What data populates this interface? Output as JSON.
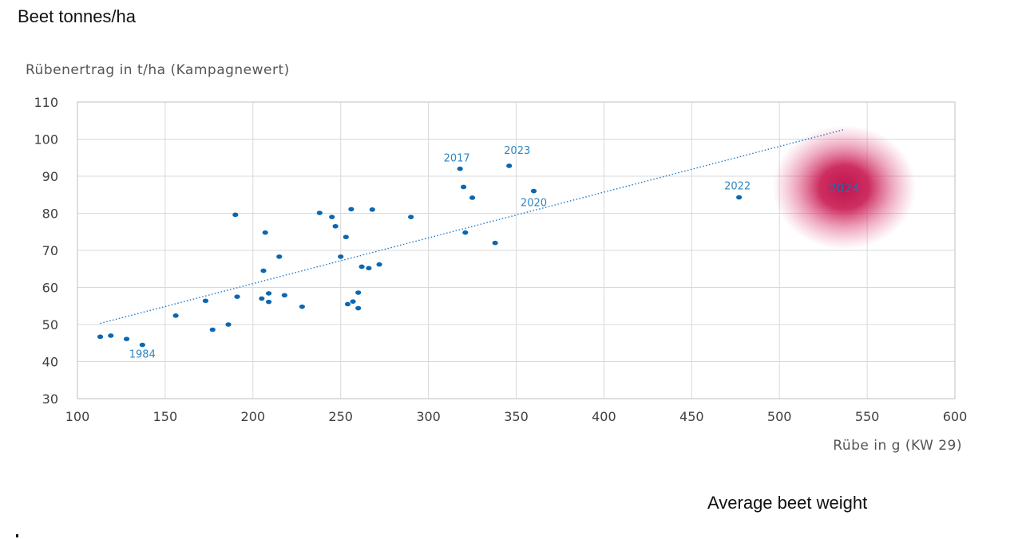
{
  "captions": {
    "top": "Beet tonnes/ha",
    "bottom": "Average beet weight"
  },
  "chart_data": {
    "type": "scatter",
    "ylabel": "Rübenertrag in t/ha (Kampagnewert)",
    "xlabel": "Rübe in g (KW 29)",
    "xlim": [
      100,
      600
    ],
    "ylim": [
      30,
      110
    ],
    "xticks": [
      100,
      150,
      200,
      250,
      300,
      350,
      400,
      450,
      500,
      550,
      600
    ],
    "yticks": [
      30,
      40,
      50,
      60,
      70,
      80,
      90,
      100,
      110
    ],
    "grid": true,
    "points": [
      {
        "x": 113,
        "y": 46.7
      },
      {
        "x": 119,
        "y": 47.0
      },
      {
        "x": 128,
        "y": 46.1
      },
      {
        "x": 137,
        "y": 44.5
      },
      {
        "x": 156,
        "y": 52.4
      },
      {
        "x": 173,
        "y": 56.4
      },
      {
        "x": 177,
        "y": 48.6
      },
      {
        "x": 186,
        "y": 50.0
      },
      {
        "x": 190,
        "y": 79.6
      },
      {
        "x": 191,
        "y": 57.5
      },
      {
        "x": 205,
        "y": 57.0
      },
      {
        "x": 206,
        "y": 64.5
      },
      {
        "x": 207,
        "y": 74.8
      },
      {
        "x": 209,
        "y": 58.4
      },
      {
        "x": 209,
        "y": 56.1
      },
      {
        "x": 215,
        "y": 68.3
      },
      {
        "x": 218,
        "y": 57.9
      },
      {
        "x": 228,
        "y": 54.8
      },
      {
        "x": 238,
        "y": 80.1
      },
      {
        "x": 245,
        "y": 79.0
      },
      {
        "x": 247,
        "y": 76.5
      },
      {
        "x": 250,
        "y": 68.3
      },
      {
        "x": 253,
        "y": 73.6
      },
      {
        "x": 254,
        "y": 55.5
      },
      {
        "x": 256,
        "y": 81.1
      },
      {
        "x": 257,
        "y": 56.2
      },
      {
        "x": 260,
        "y": 58.6
      },
      {
        "x": 260,
        "y": 54.4
      },
      {
        "x": 262,
        "y": 65.6
      },
      {
        "x": 266,
        "y": 65.2
      },
      {
        "x": 268,
        "y": 81.0
      },
      {
        "x": 272,
        "y": 66.2
      },
      {
        "x": 290,
        "y": 79.0
      },
      {
        "x": 318,
        "y": 92.0
      },
      {
        "x": 320,
        "y": 87.1
      },
      {
        "x": 321,
        "y": 74.8
      },
      {
        "x": 325,
        "y": 84.2
      },
      {
        "x": 338,
        "y": 72.0
      },
      {
        "x": 346,
        "y": 92.8
      },
      {
        "x": 360,
        "y": 86.0
      },
      {
        "x": 477,
        "y": 84.3
      }
    ],
    "annotations": [
      {
        "text": "1984",
        "x": 137,
        "y": 44.5
      },
      {
        "text": "2017",
        "x": 318,
        "y": 92.0
      },
      {
        "text": "2023",
        "x": 346,
        "y": 92.8
      },
      {
        "text": "2020",
        "x": 360,
        "y": 86.0
      },
      {
        "text": "2022",
        "x": 477,
        "y": 84.3
      }
    ],
    "trendline": {
      "x": [
        113,
        537
      ],
      "y": [
        50.3,
        102.6
      ]
    },
    "highlight": {
      "text": "2024",
      "x": 537,
      "y": 87.0,
      "color": "#c0134f"
    },
    "colors": {
      "points": "#0b67b1",
      "trend": "#1f77c8",
      "annotation": "#2e86c1"
    }
  }
}
